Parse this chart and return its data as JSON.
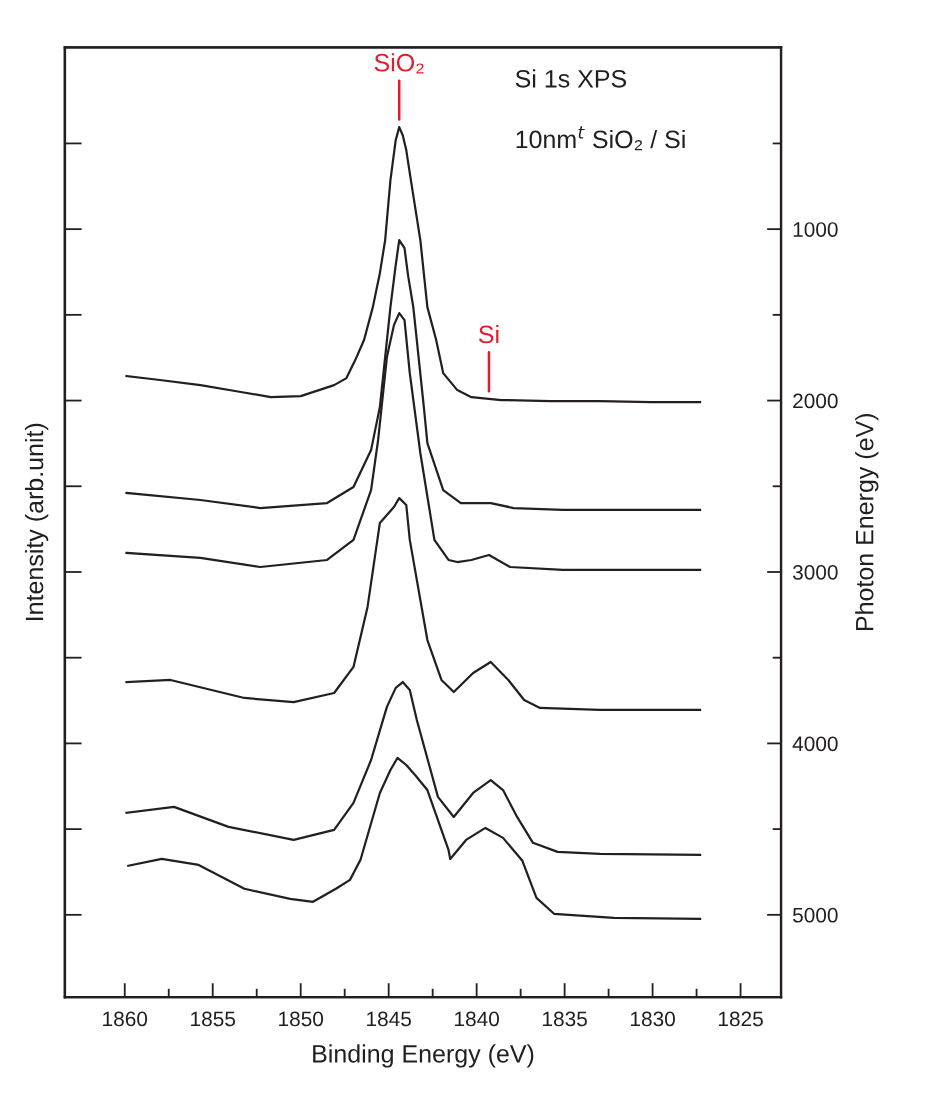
{
  "chart_data": {
    "type": "line",
    "xlabel": "Binding Energy (eV)",
    "ylabel": "Intensity (arb.unit)",
    "y2label": "Photon Energy (eV)",
    "xlim": [
      1863.4,
      1822.7
    ],
    "xticks": [
      1860,
      {
        "value": 1857.5,
        "label": null
      },
      1855,
      {
        "value": 1852.5,
        "label": null
      },
      1850,
      {
        "value": 1847.5,
        "label": null
      },
      1845,
      {
        "value": 1842.5,
        "label": null
      },
      1840,
      {
        "value": 1837.5,
        "label": null
      },
      1835,
      {
        "value": 1832.5,
        "label": null
      },
      1830,
      {
        "value": 1827.5,
        "label": null
      },
      1825
    ],
    "y2lim": [
      5480,
      -60
    ],
    "y2ticks": [
      {
        "value": 500,
        "label": null
      },
      1000,
      {
        "value": 1500,
        "label": null
      },
      2000,
      {
        "value": 2500,
        "label": null
      },
      3000,
      {
        "value": 3500,
        "label": null
      },
      4000,
      {
        "value": 4500,
        "label": null
      },
      5000
    ],
    "grid": false,
    "line_style": "solid",
    "marker": "none",
    "annotations": [
      {
        "text": "SiO₂",
        "x": 1844.4
      },
      {
        "text": "Si",
        "x": 1839.3
      },
      "Si 1s XPS",
      "10nm$^{t}$ SiO₂ / Si"
    ],
    "series": [
      {
        "color": "#231f20",
        "axis": "y2",
        "x": [
          1859.9,
          1858.0,
          1855.7,
          1853.4,
          1851.7,
          1850.0,
          1848.1,
          1847.4,
          1846.9,
          1846.4,
          1845.9,
          1845.5,
          1845.2,
          1844.9,
          1844.6,
          1844.4,
          1844.2,
          1844.0,
          1843.8,
          1843.2,
          1842.8,
          1842.3,
          1841.9,
          1841.1,
          1840.3,
          1838.6,
          1835.8,
          1833.0,
          1830.1,
          1827.3
        ],
        "values": [
          1857,
          1880,
          1910,
          1950,
          1980,
          1974,
          1910,
          1869,
          1764,
          1647,
          1455,
          1257,
          1064,
          714,
          481,
          405,
          452,
          539,
          673,
          1064,
          1455,
          1647,
          1840,
          1939,
          1980,
          1997,
          2003,
          2003,
          2009,
          2009
        ]
      },
      {
        "color": "#231f20",
        "axis": "y2",
        "x": [
          1859.9,
          1855.7,
          1852.3,
          1848.5,
          1847.0,
          1846.0,
          1845.5,
          1844.9,
          1844.6,
          1844.4,
          1844.1,
          1843.9,
          1843.6,
          1843.0,
          1842.8,
          1841.9,
          1840.9,
          1839.2,
          1837.9,
          1835.1,
          1827.3
        ],
        "values": [
          2539,
          2580,
          2627,
          2598,
          2504,
          2289,
          2038,
          1455,
          1210,
          1064,
          1111,
          1268,
          1455,
          2038,
          2248,
          2522,
          2598,
          2598,
          2627,
          2638,
          2638
        ]
      },
      {
        "color": "#231f20",
        "axis": "y2",
        "x": [
          1859.9,
          1855.7,
          1852.3,
          1848.5,
          1847.0,
          1846.0,
          1845.6,
          1845.1,
          1844.7,
          1844.4,
          1844.1,
          1843.8,
          1843.2,
          1842.4,
          1841.6,
          1841.1,
          1840.3,
          1839.3,
          1838.1,
          1835.1,
          1827.3
        ],
        "values": [
          2889,
          2918,
          2971,
          2930,
          2813,
          2522,
          2230,
          1746,
          1560,
          1490,
          1531,
          1840,
          2306,
          2813,
          2930,
          2942,
          2930,
          2901,
          2971,
          2988,
          2988
        ]
      },
      {
        "color": "#231f20",
        "axis": "y2",
        "x": [
          1859.9,
          1857.4,
          1853.2,
          1850.4,
          1848.1,
          1847.0,
          1846.2,
          1845.5,
          1844.7,
          1844.4,
          1844.0,
          1843.8,
          1842.8,
          1842.0,
          1841.3,
          1840.2,
          1839.2,
          1838.2,
          1837.3,
          1836.4,
          1833.0,
          1827.3
        ],
        "values": [
          3642,
          3630,
          3735,
          3759,
          3706,
          3554,
          3204,
          2714,
          2621,
          2569,
          2609,
          2813,
          3397,
          3630,
          3700,
          3589,
          3525,
          3630,
          3747,
          3793,
          3805,
          3805
        ]
      },
      {
        "color": "#231f20",
        "axis": "y2",
        "x": [
          1859.9,
          1857.2,
          1854.1,
          1850.4,
          1848.1,
          1847.0,
          1846.0,
          1845.1,
          1844.6,
          1844.2,
          1843.8,
          1843.4,
          1842.2,
          1841.3,
          1840.2,
          1839.2,
          1838.5,
          1837.7,
          1836.8,
          1835.4,
          1833.0,
          1827.3
        ],
        "values": [
          4405,
          4370,
          4487,
          4563,
          4504,
          4347,
          4097,
          3787,
          3676,
          3642,
          3688,
          3863,
          4312,
          4429,
          4289,
          4214,
          4272,
          4429,
          4580,
          4633,
          4644,
          4650
        ]
      },
      {
        "color": "#231f20",
        "axis": "y2",
        "x": [
          1859.8,
          1857.9,
          1855.8,
          1853.2,
          1850.6,
          1849.3,
          1848.0,
          1847.2,
          1846.6,
          1845.5,
          1844.9,
          1844.5,
          1844.0,
          1843.5,
          1842.8,
          1841.6,
          1841.5,
          1840.6,
          1839.5,
          1838.5,
          1837.4,
          1836.6,
          1835.6,
          1832.2,
          1827.3
        ],
        "values": [
          4714,
          4674,
          4709,
          4848,
          4907,
          4924,
          4848,
          4796,
          4679,
          4289,
          4155,
          4085,
          4126,
          4184,
          4272,
          4621,
          4674,
          4563,
          4493,
          4551,
          4685,
          4901,
          4994,
          5018,
          5023
        ]
      }
    ]
  }
}
